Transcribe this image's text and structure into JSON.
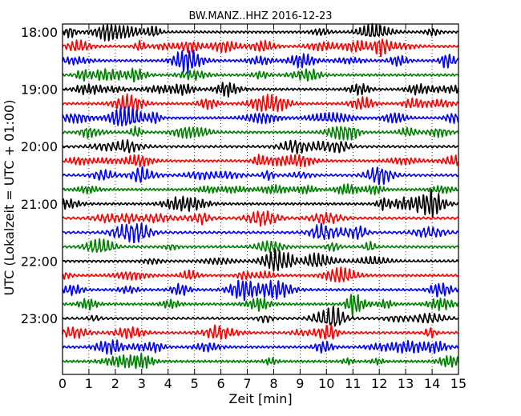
{
  "chart_data": {
    "type": "line",
    "title": "BW.MANZ..HHZ 2016-12-23",
    "xlabel": "Zeit  [min]",
    "ylabel": "UTC (Lokalzeit = UTC + 01:00)",
    "xlim": [
      0,
      15
    ],
    "x_ticks": [
      "0",
      "1",
      "2",
      "3",
      "4",
      "5",
      "6",
      "7",
      "8",
      "9",
      "10",
      "11",
      "12",
      "13",
      "14",
      "15"
    ],
    "y_ticks": [
      "18:00",
      "19:00",
      "20:00",
      "21:00",
      "22:00",
      "23:00"
    ],
    "rows": 24,
    "minutes_per_row": 15,
    "start_time": "18:00",
    "colors": [
      "#000000",
      "#ff0000",
      "#0000ff",
      "#008000"
    ],
    "grid": "vertical dotted at each minute",
    "series_note": "seismic trace, one 15-minute line per row, color cycles black, red, blue, green"
  }
}
